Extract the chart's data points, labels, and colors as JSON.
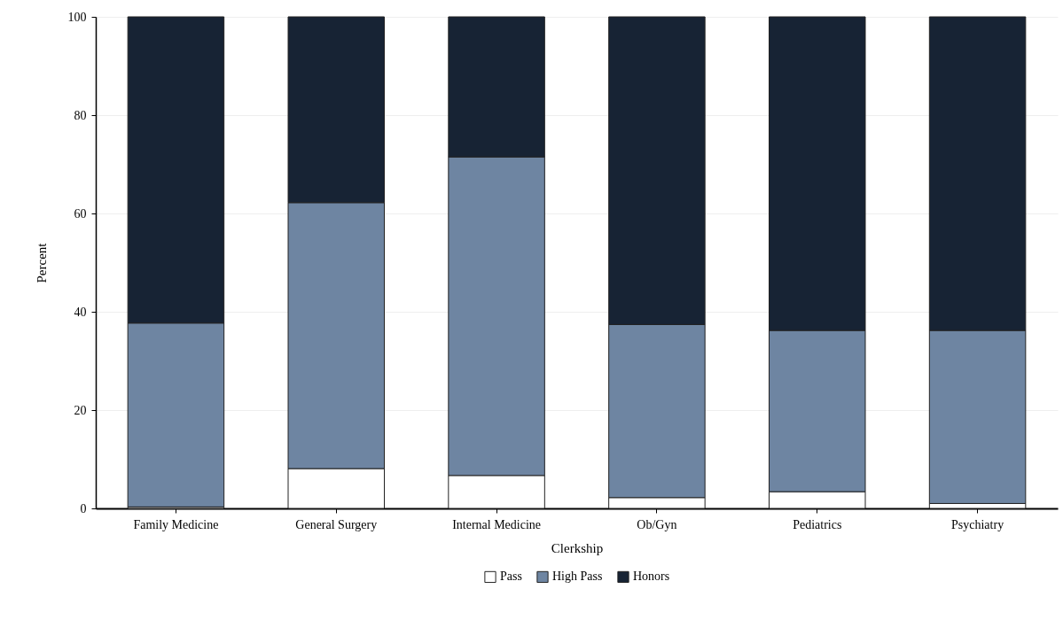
{
  "chart_data": {
    "type": "bar",
    "stacked": true,
    "xlabel": "Clerkship",
    "ylabel": "Percent",
    "categories": [
      "Family Medicine",
      "General Surgery",
      "Internal Medicine",
      "Ob/Gyn",
      "Pediatrics",
      "Psychiatry"
    ],
    "series": [
      {
        "name": "Pass",
        "color": "#ffffff",
        "values": [
          0.3,
          8.1,
          6.7,
          2.2,
          3.4,
          1.0
        ]
      },
      {
        "name": "High Pass",
        "color": "#6e85a2",
        "values": [
          37.4,
          54.1,
          64.8,
          35.2,
          32.8,
          35.2
        ]
      },
      {
        "name": "Honors",
        "color": "#172334",
        "values": [
          62.3,
          37.8,
          28.5,
          62.6,
          63.8,
          63.8
        ]
      }
    ],
    "ylim": [
      0,
      100
    ],
    "yticks": [
      0,
      20,
      40,
      60,
      80,
      100
    ],
    "grid": "y",
    "legend": "bottom"
  }
}
